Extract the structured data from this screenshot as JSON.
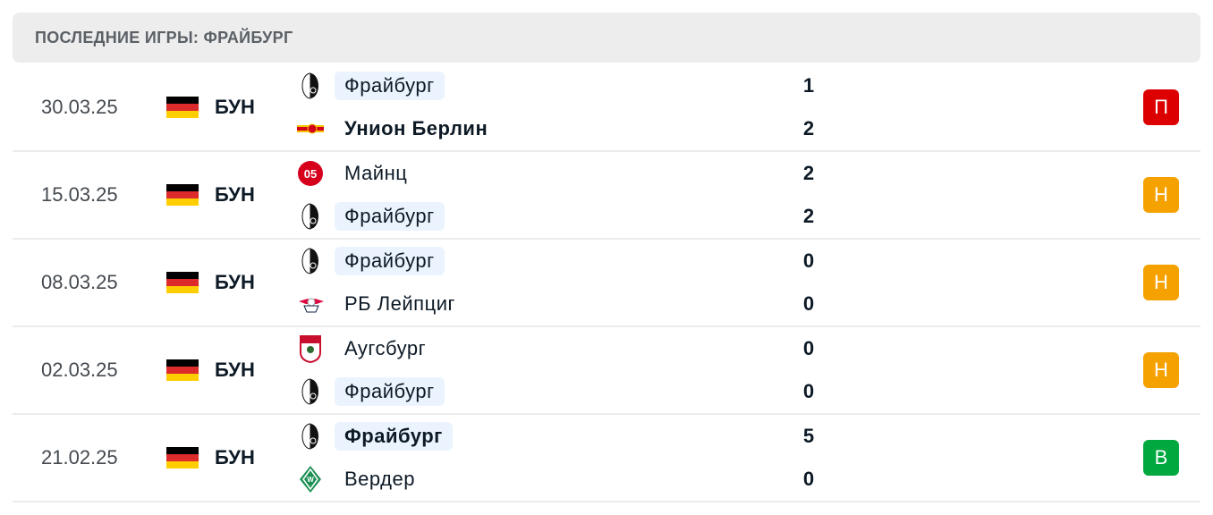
{
  "header": {
    "title": "ПОСЛЕДНИЕ ИГРЫ: ФРАЙБУРГ"
  },
  "colors": {
    "loss": "#dc0000",
    "draw": "#f5a100",
    "win": "#00a83f",
    "highlight": "#ebf4fe"
  },
  "matches": [
    {
      "date": "30.03.25",
      "league": "БУН",
      "flag": "germany-flag",
      "home": {
        "name": "Фрайбург",
        "logo": "freiburg-logo",
        "score": "1",
        "highlight": true,
        "winner": false
      },
      "away": {
        "name": "Унион Берлин",
        "logo": "union-berlin-logo",
        "score": "2",
        "highlight": false,
        "winner": true
      },
      "result": "П",
      "result_type": "loss"
    },
    {
      "date": "15.03.25",
      "league": "БУН",
      "flag": "germany-flag",
      "home": {
        "name": "Майнц",
        "logo": "mainz-logo",
        "score": "2",
        "highlight": false,
        "winner": false
      },
      "away": {
        "name": "Фрайбург",
        "logo": "freiburg-logo",
        "score": "2",
        "highlight": true,
        "winner": false
      },
      "result": "Н",
      "result_type": "draw"
    },
    {
      "date": "08.03.25",
      "league": "БУН",
      "flag": "germany-flag",
      "home": {
        "name": "Фрайбург",
        "logo": "freiburg-logo",
        "score": "0",
        "highlight": true,
        "winner": false
      },
      "away": {
        "name": "РБ Лейпциг",
        "logo": "rb-leipzig-logo",
        "score": "0",
        "highlight": false,
        "winner": false
      },
      "result": "Н",
      "result_type": "draw"
    },
    {
      "date": "02.03.25",
      "league": "БУН",
      "flag": "germany-flag",
      "home": {
        "name": "Аугсбург",
        "logo": "augsburg-logo",
        "score": "0",
        "highlight": false,
        "winner": false
      },
      "away": {
        "name": "Фрайбург",
        "logo": "freiburg-logo",
        "score": "0",
        "highlight": true,
        "winner": false
      },
      "result": "Н",
      "result_type": "draw"
    },
    {
      "date": "21.02.25",
      "league": "БУН",
      "flag": "germany-flag",
      "home": {
        "name": "Фрайбург",
        "logo": "freiburg-logo",
        "score": "5",
        "highlight": true,
        "winner": true
      },
      "away": {
        "name": "Вердер",
        "logo": "werder-logo",
        "score": "0",
        "highlight": false,
        "winner": false
      },
      "result": "В",
      "result_type": "win"
    }
  ]
}
